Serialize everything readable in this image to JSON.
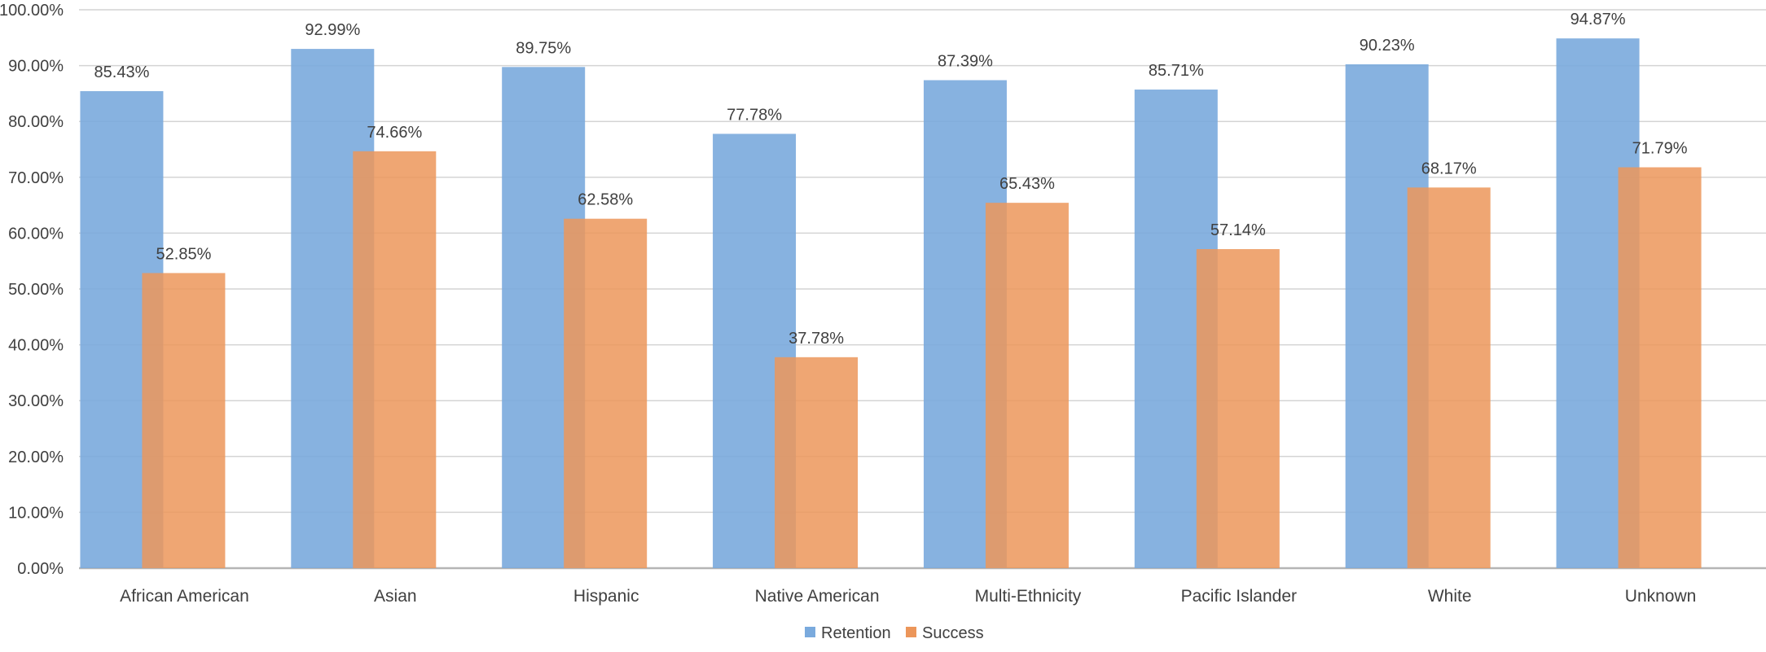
{
  "chart_data": {
    "type": "bar",
    "title": "",
    "xlabel": "",
    "ylabel": "",
    "ylim": [
      0,
      100
    ],
    "ytick_step": 10,
    "yticks": [
      "0.00%",
      "10.00%",
      "20.00%",
      "30.00%",
      "40.00%",
      "50.00%",
      "60.00%",
      "70.00%",
      "80.00%",
      "90.00%",
      "100.00%"
    ],
    "grid": true,
    "legend_position": "bottom-center",
    "categories": [
      "African American",
      "Asian",
      "Hispanic",
      "Native American",
      "Multi-Ethnicity",
      "Pacific Islander",
      "White",
      "Unknown"
    ],
    "series": [
      {
        "name": "Retention",
        "color": "#7AAADD",
        "values": [
          85.43,
          92.99,
          89.75,
          77.78,
          87.39,
          85.71,
          90.23,
          94.87
        ],
        "labels": [
          "85.43%",
          "92.99%",
          "89.75%",
          "77.78%",
          "87.39%",
          "85.71%",
          "90.23%",
          "94.87%"
        ]
      },
      {
        "name": "Success",
        "color": "#EC965A",
        "values": [
          52.85,
          74.66,
          62.58,
          37.78,
          65.43,
          57.14,
          68.17,
          71.79
        ],
        "labels": [
          "52.85%",
          "74.66%",
          "62.58%",
          "37.78%",
          "65.43%",
          "57.14%",
          "68.17%",
          "71.79%"
        ]
      }
    ]
  }
}
